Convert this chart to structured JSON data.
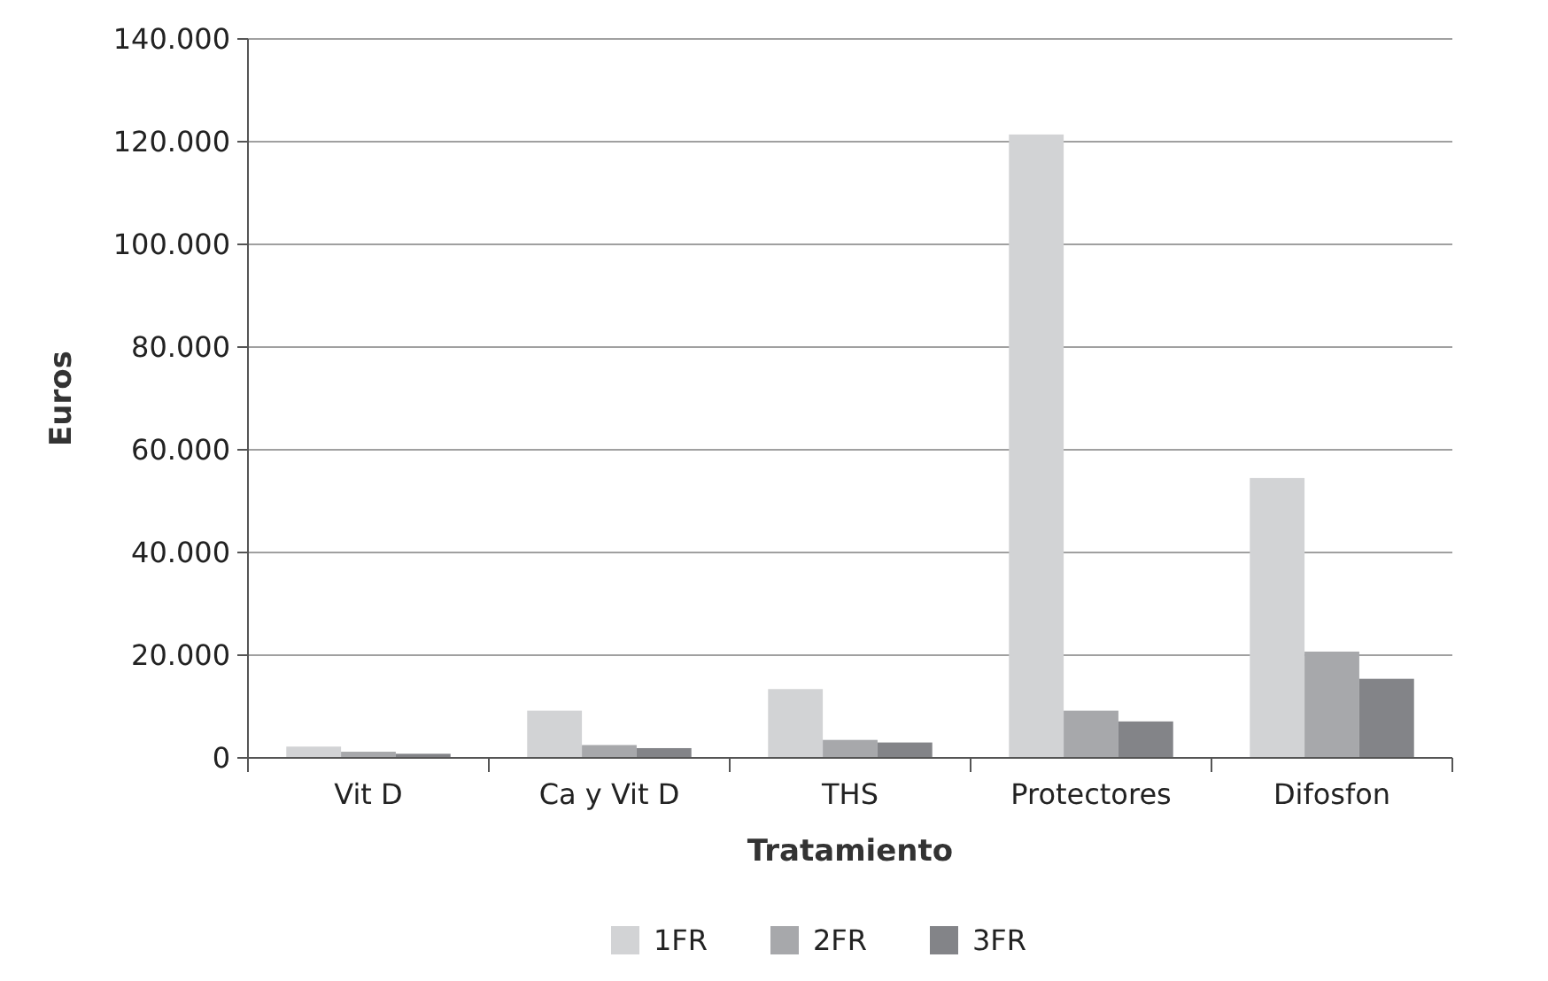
{
  "chart_data": {
    "type": "bar",
    "xlabel": "Tratamiento",
    "ylabel": "Euros",
    "categories": [
      "Vit D",
      "Ca y Vit D",
      "THS",
      "Protectores",
      "Difosfon"
    ],
    "series": [
      {
        "name": "1FR",
        "color": "#d2d3d5",
        "values": [
          2200,
          9200,
          13400,
          121400,
          54500
        ]
      },
      {
        "name": "2FR",
        "color": "#a7a8ab",
        "values": [
          1200,
          2500,
          3500,
          9200,
          20700
        ]
      },
      {
        "name": "3FR",
        "color": "#838488",
        "values": [
          800,
          1900,
          3000,
          7100,
          15400
        ]
      }
    ],
    "ylim": [
      0,
      140000
    ],
    "yticks": [
      0,
      {
        "value": 20000,
        "label": "20.000"
      },
      {
        "value": 40000,
        "label": "40.000"
      },
      {
        "value": 60000,
        "label": "60.000"
      },
      {
        "value": 80000,
        "label": "80.000"
      },
      {
        "value": 100000,
        "label": "100.000"
      },
      {
        "value": 120000,
        "label": "120.000"
      },
      {
        "value": 140000,
        "label": "140.000"
      }
    ],
    "grid": "y",
    "legend": "bottom"
  }
}
